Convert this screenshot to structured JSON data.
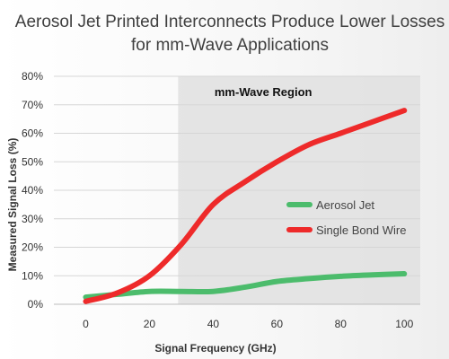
{
  "chart_data": {
    "type": "line",
    "title_line1": "Aerosol Jet Printed Interconnects Produce Lower Losses",
    "title_line2": "for mm-Wave Applications",
    "xlabel": "Signal Frequency (GHz)",
    "ylabel": "Measured Signal Loss (%)",
    "xlim": [
      -10,
      105
    ],
    "ylim": [
      0,
      80
    ],
    "xticks": [
      0,
      20,
      40,
      60,
      80,
      100
    ],
    "yticks": [
      0,
      10,
      20,
      30,
      40,
      50,
      60,
      70,
      80
    ],
    "ytick_suffix": "%",
    "grid": true,
    "legend_position": "right",
    "shaded_region": {
      "x_start": 29,
      "x_end": 105,
      "label": "mm-Wave Region"
    },
    "series": [
      {
        "name": "Aerosol Jet",
        "color": "#4cbc6c",
        "x": [
          0,
          10,
          20,
          30,
          40,
          50,
          60,
          70,
          80,
          90,
          100
        ],
        "y": [
          2.5,
          3.5,
          4.5,
          4.5,
          4.5,
          6.0,
          8.0,
          9.0,
          9.8,
          10.3,
          10.7
        ]
      },
      {
        "name": "Single Bond Wire",
        "color": "#ee2a2a",
        "x": [
          0,
          10,
          20,
          30,
          40,
          50,
          60,
          70,
          80,
          90,
          100
        ],
        "y": [
          1,
          4,
          10,
          21,
          35,
          43,
          50,
          56,
          60,
          64,
          68
        ]
      }
    ]
  }
}
